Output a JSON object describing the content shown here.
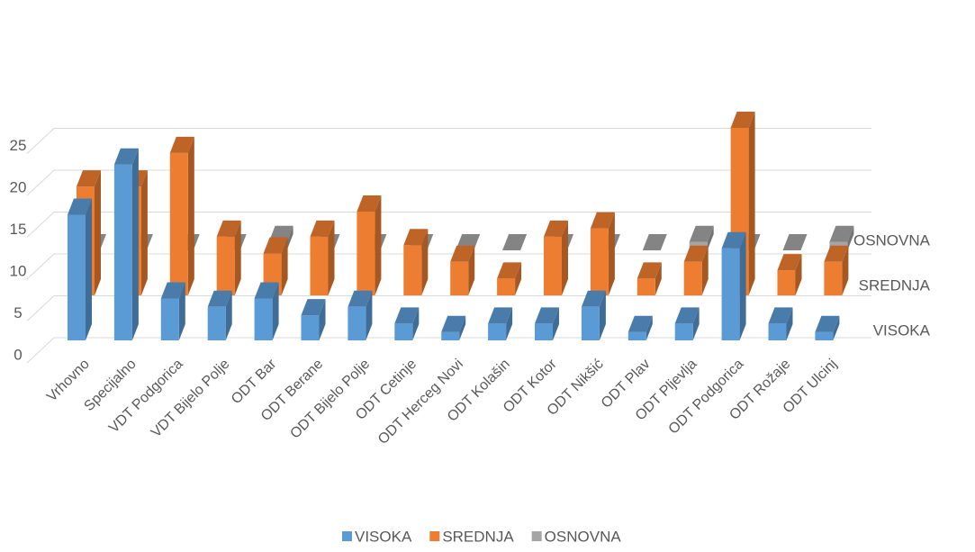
{
  "chart_data": {
    "type": "bar3d",
    "categories": [
      "Vrhovno",
      "Specijalno",
      "VDT Podgorica",
      "VDT Bijelo Polje",
      "ODT Bar",
      "ODT Berane",
      "ODT Bijelo Polje",
      "ODT Cetinje",
      "ODT Herceg Novi",
      "ODT Kolašin",
      "ODT Kotor",
      "ODT Nikšić",
      "ODT Plav",
      "ODT Pljevlja",
      "ODT Podgorica",
      "ODT Rožaje",
      "ODT Ulcinj"
    ],
    "series": [
      {
        "name": "VISOKA",
        "color": "#5b9bd5",
        "values": [
          15,
          21,
          5,
          4,
          5,
          3,
          4,
          2,
          1,
          2,
          2,
          4,
          1,
          2,
          11,
          2,
          1
        ]
      },
      {
        "name": "SREDNJA",
        "color": "#ed7d31",
        "values": [
          13,
          13,
          17,
          7,
          5,
          7,
          10,
          6,
          4,
          2,
          7,
          8,
          2,
          4,
          20,
          3,
          4
        ]
      },
      {
        "name": "OSNOVNA",
        "color": "#a5a5a5",
        "values": [
          0,
          0,
          0,
          0,
          1,
          0,
          0,
          0,
          0,
          0,
          0,
          0,
          0,
          1,
          0,
          0,
          1
        ]
      }
    ],
    "ylim": [
      0,
      40
    ],
    "yticks": [
      0,
      5,
      10,
      15,
      20,
      25
    ],
    "grid": true,
    "legend": "bottom"
  }
}
